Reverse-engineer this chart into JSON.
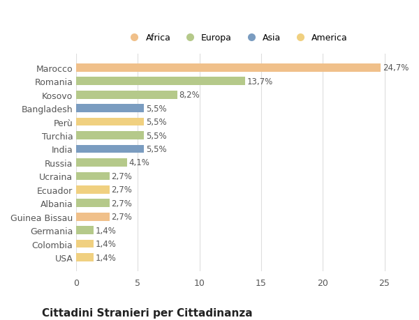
{
  "title": "Cittadini Stranieri per Cittadinanza",
  "categories": [
    "Marocco",
    "Romania",
    "Kosovo",
    "Bangladesh",
    "Perù",
    "Turchia",
    "India",
    "Russia",
    "Ucraina",
    "Ecuador",
    "Albania",
    "Guinea Bissau",
    "Germania",
    "Colombia",
    "USA"
  ],
  "values": [
    24.7,
    13.7,
    8.2,
    5.5,
    5.5,
    5.5,
    5.5,
    4.1,
    2.7,
    2.7,
    2.7,
    2.7,
    1.4,
    1.4,
    1.4
  ],
  "labels": [
    "24,7%",
    "13,7%",
    "8,2%",
    "5,5%",
    "5,5%",
    "5,5%",
    "5,5%",
    "4,1%",
    "2,7%",
    "2,7%",
    "2,7%",
    "2,7%",
    "1,4%",
    "1,4%",
    "1,4%"
  ],
  "colors": [
    "#F0C08A",
    "#B5C98A",
    "#B5C98A",
    "#7A9CC0",
    "#F0D080",
    "#B5C98A",
    "#7A9CC0",
    "#B5C98A",
    "#B5C98A",
    "#F0D080",
    "#B5C98A",
    "#F0C08A",
    "#B5C98A",
    "#F0D080",
    "#F0D080"
  ],
  "legend": [
    {
      "label": "Africa",
      "color": "#F0C08A"
    },
    {
      "label": "Europa",
      "color": "#B5C98A"
    },
    {
      "label": "Asia",
      "color": "#7A9CC0"
    },
    {
      "label": "America",
      "color": "#F0D080"
    }
  ],
  "xlim": [
    0,
    26
  ],
  "xticks": [
    0,
    5,
    10,
    15,
    20,
    25
  ],
  "background_color": "#ffffff",
  "bar_height": 0.6,
  "title_fontsize": 11,
  "subtitle_fontsize": 8,
  "tick_fontsize": 9,
  "label_fontsize": 8.5
}
